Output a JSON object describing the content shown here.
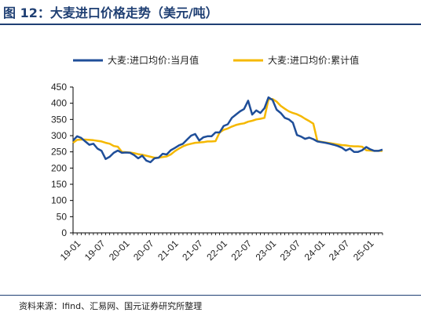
{
  "header": {
    "title": "图 12：大麦进口价格走势（美元/吨）"
  },
  "footer": {
    "source": "资料来源：Ifind、汇易网、国元证券研究所整理"
  },
  "colors": {
    "title": "#1f3f73",
    "series_monthly": "#1f4e99",
    "series_cumulative": "#f5b800",
    "axis": "#000000"
  },
  "chart_data": {
    "type": "line",
    "title": "",
    "xlabel": "",
    "ylabel": "",
    "ylim": [
      0,
      450
    ],
    "yticks": [
      0,
      50,
      100,
      150,
      200,
      250,
      300,
      350,
      400,
      450
    ],
    "xtick_labels": [
      "19-01",
      "19-07",
      "20-01",
      "20-07",
      "21-01",
      "21-07",
      "22-01",
      "22-07",
      "23-01",
      "23-07",
      "24-01",
      "24-07",
      "25-01"
    ],
    "x": [
      "19-01",
      "19-02",
      "19-03",
      "19-04",
      "19-05",
      "19-06",
      "19-07",
      "19-08",
      "19-09",
      "19-10",
      "19-11",
      "19-12",
      "20-01",
      "20-02",
      "20-03",
      "20-04",
      "20-05",
      "20-06",
      "20-07",
      "20-08",
      "20-09",
      "20-10",
      "20-11",
      "20-12",
      "21-01",
      "21-02",
      "21-03",
      "21-04",
      "21-05",
      "21-06",
      "21-07",
      "21-08",
      "21-09",
      "21-10",
      "21-11",
      "21-12",
      "22-01",
      "22-02",
      "22-03",
      "22-04",
      "22-05",
      "22-06",
      "22-07",
      "22-08",
      "22-09",
      "22-10",
      "22-11",
      "22-12",
      "23-01",
      "23-02",
      "23-03",
      "23-04",
      "23-05",
      "23-06",
      "23-07",
      "23-08",
      "23-09",
      "23-10",
      "23-11",
      "23-12",
      "24-01",
      "24-02",
      "24-03",
      "24-04",
      "24-05",
      "24-06",
      "24-07",
      "24-08",
      "24-09",
      "24-10",
      "24-11",
      "24-12",
      "25-01",
      "25-02",
      "25-03",
      "25-04",
      "25-05"
    ],
    "legend_position": "top",
    "grid": false,
    "series": [
      {
        "name": "大麦:进口均价:当月值",
        "values": [
          285,
          298,
          293,
          282,
          272,
          275,
          260,
          253,
          228,
          235,
          247,
          254,
          247,
          248,
          247,
          240,
          230,
          238,
          223,
          218,
          230,
          232,
          244,
          242,
          255,
          262,
          270,
          275,
          288,
          300,
          305,
          285,
          295,
          298,
          298,
          310,
          310,
          330,
          335,
          355,
          365,
          375,
          382,
          408,
          365,
          378,
          370,
          385,
          418,
          410,
          380,
          370,
          355,
          350,
          340,
          302,
          297,
          290,
          294,
          289,
          282,
          280,
          278,
          275,
          272,
          268,
          263,
          254,
          260,
          250,
          250,
          255,
          265,
          258,
          253,
          253,
          257
        ]
      },
      {
        "name": "大麦:进口均价:累计值",
        "values": [
          278,
          287,
          288,
          288,
          287,
          286,
          284,
          282,
          278,
          275,
          268,
          266,
          250,
          249,
          248,
          246,
          243,
          241,
          238,
          235,
          232,
          232,
          234,
          236,
          242,
          252,
          260,
          267,
          272,
          275,
          278,
          279,
          280,
          282,
          282,
          283,
          310,
          318,
          322,
          328,
          333,
          336,
          338,
          343,
          346,
          350,
          352,
          355,
          412,
          413,
          405,
          392,
          383,
          375,
          370,
          366,
          360,
          352,
          345,
          337,
          283,
          281,
          279,
          277,
          275,
          273,
          271,
          270,
          268,
          267,
          267,
          266,
          255,
          254,
          253,
          253,
          253
        ]
      }
    ]
  }
}
